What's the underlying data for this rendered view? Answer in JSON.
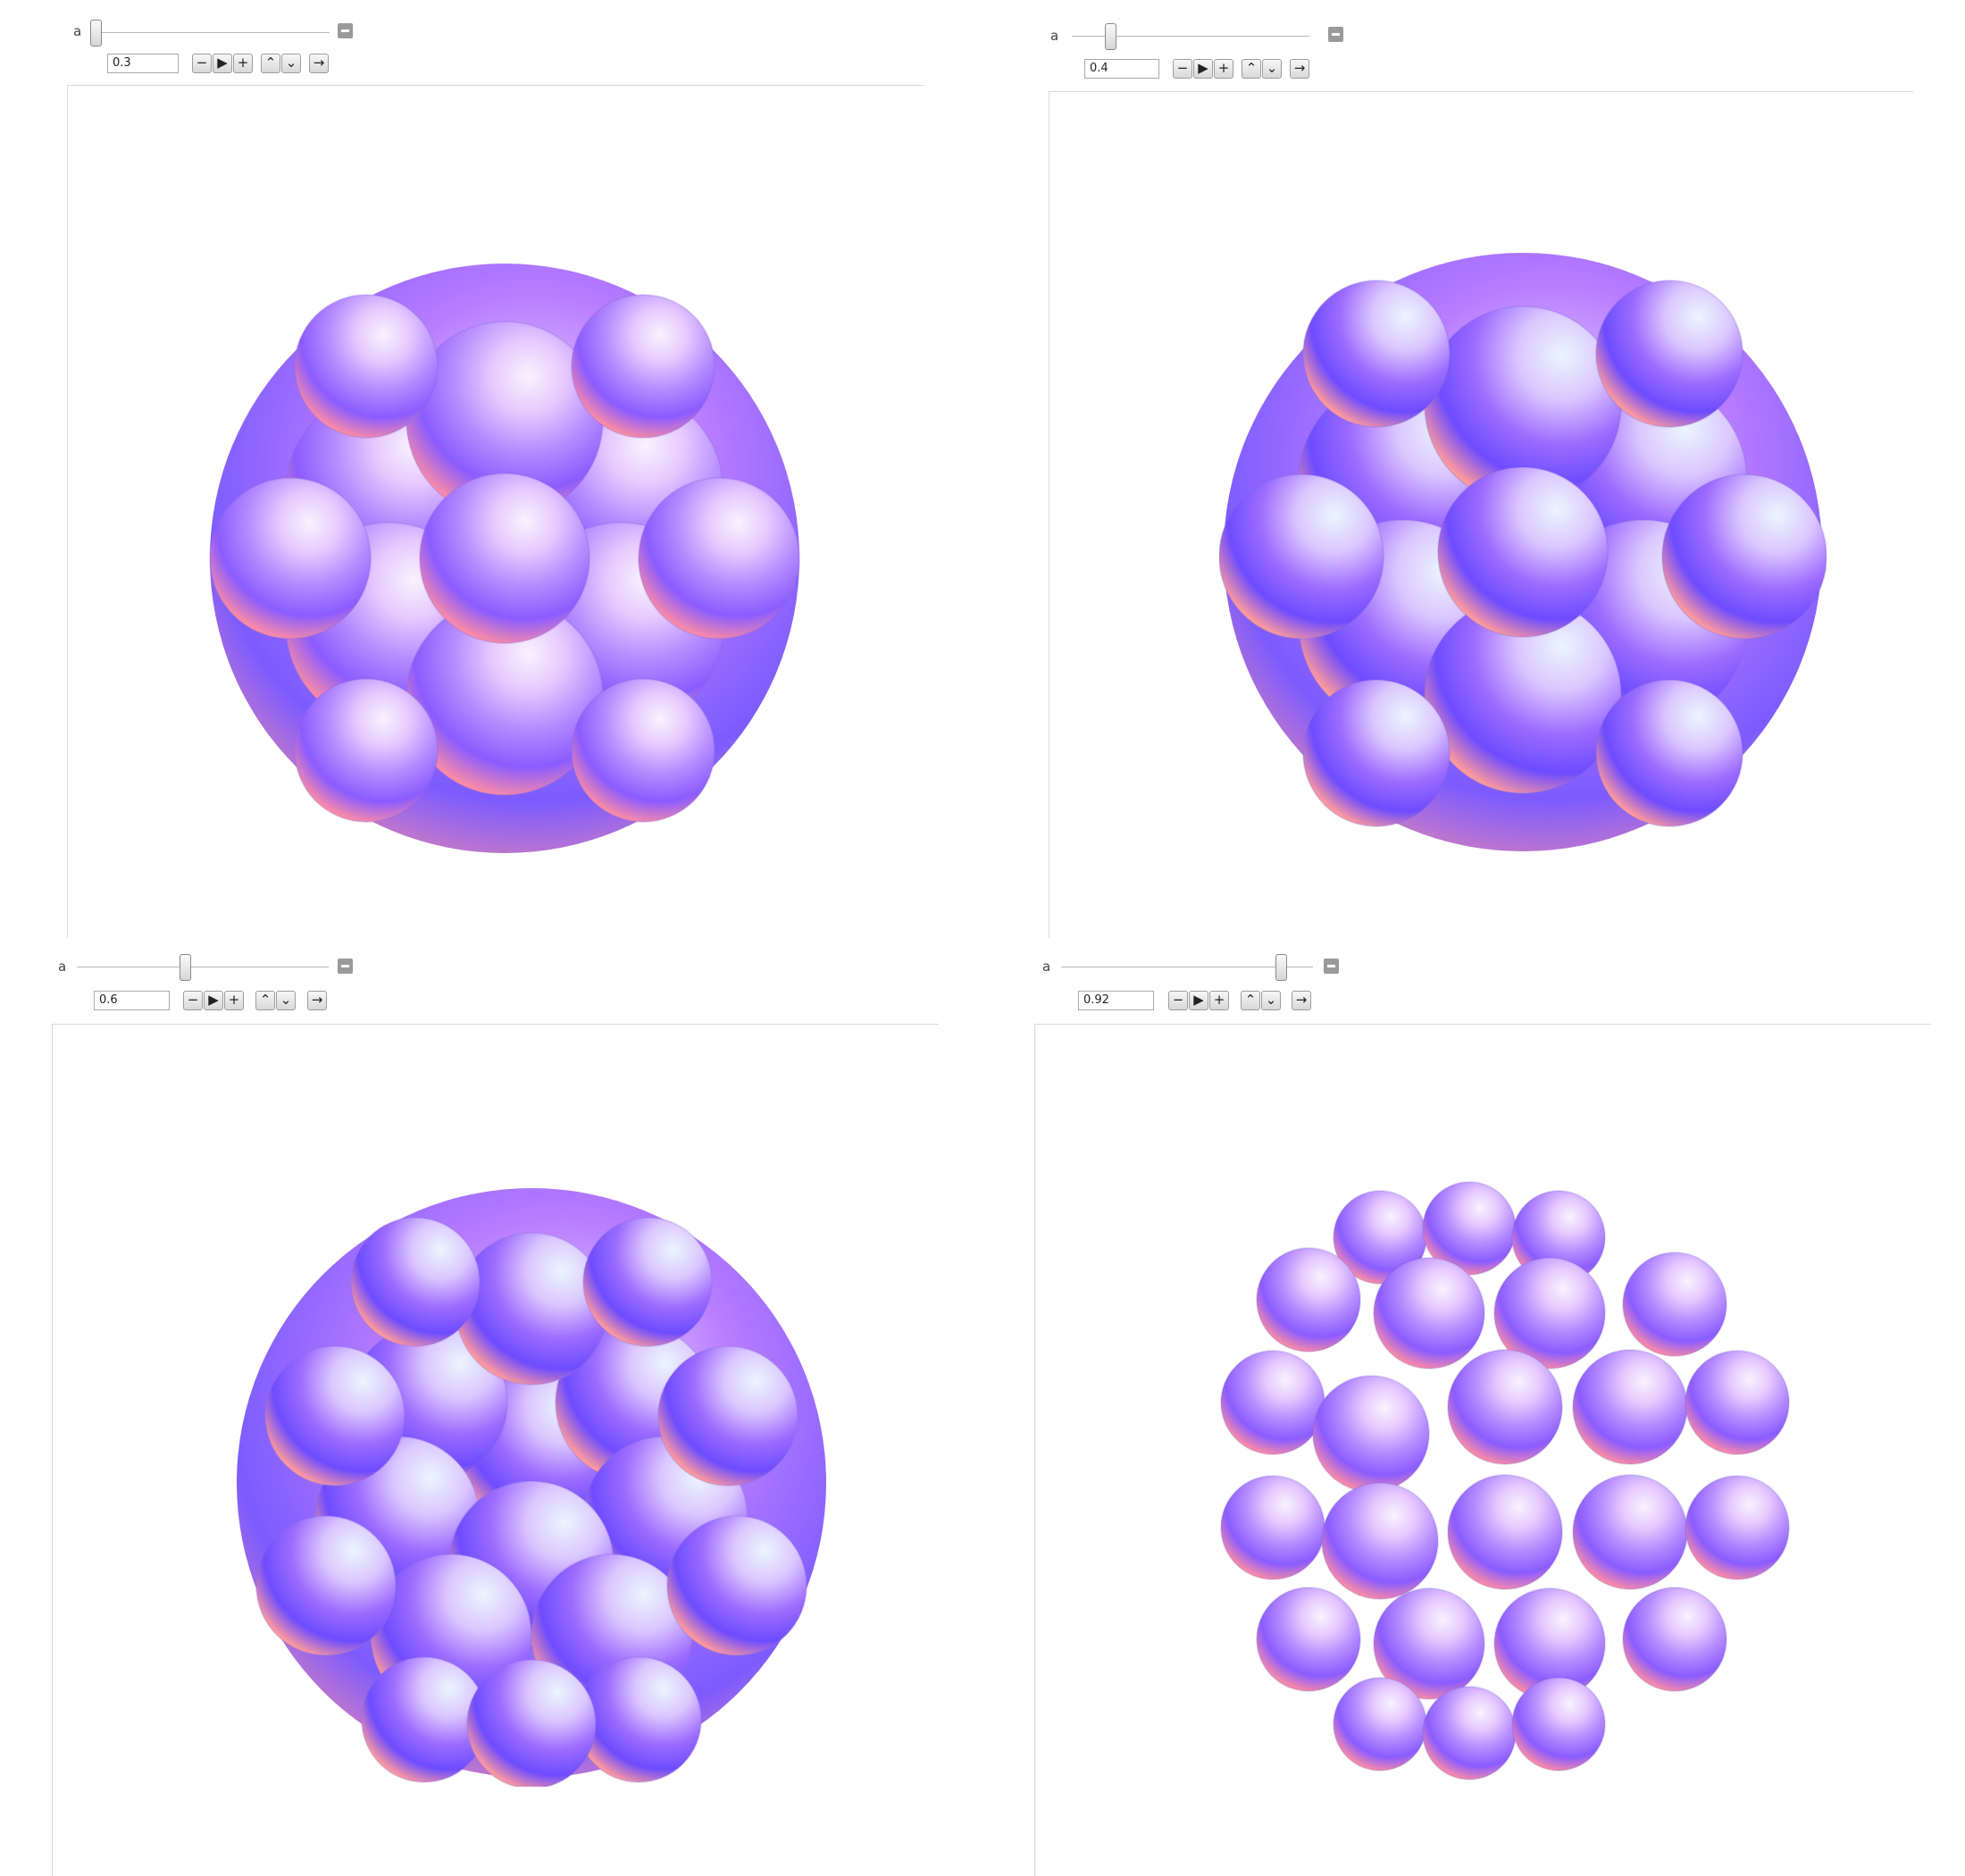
{
  "colors": {
    "sphere_light": "#f6e9ff",
    "sphere_blue": "#6b4dff",
    "sphere_violet": "#b45cff",
    "sphere_pink": "#ff8aa8",
    "frame_line": "#d9d9d9"
  },
  "panels": [
    {
      "label": "a",
      "value": "0.3",
      "slider_fraction": 0.03,
      "buttons": [
        "−",
        "▶",
        "+",
        "⌃",
        "⌄",
        "→"
      ],
      "icons": [
        "minus-icon",
        "play-icon",
        "plus-icon",
        "faster-icon",
        "slower-icon",
        "direction-icon"
      ]
    },
    {
      "label": "a",
      "value": "0.4",
      "slider_fraction": 0.14,
      "buttons": [
        "−",
        "▶",
        "+",
        "⌃",
        "⌄",
        "→"
      ],
      "icons": [
        "minus-icon",
        "play-icon",
        "plus-icon",
        "faster-icon",
        "slower-icon",
        "direction-icon"
      ]
    },
    {
      "label": "a",
      "value": "0.6",
      "slider_fraction": 0.42,
      "buttons": [
        "−",
        "▶",
        "+",
        "⌃",
        "⌄",
        "→"
      ],
      "icons": [
        "minus-icon",
        "play-icon",
        "plus-icon",
        "faster-icon",
        "slower-icon",
        "direction-icon"
      ]
    },
    {
      "label": "a",
      "value": "0.92",
      "slider_fraction": 0.86,
      "buttons": [
        "−",
        "▶",
        "+",
        "⌃",
        "⌄",
        "→"
      ],
      "icons": [
        "minus-icon",
        "play-icon",
        "plus-icon",
        "faster-icon",
        "slower-icon",
        "direction-icon"
      ]
    }
  ]
}
